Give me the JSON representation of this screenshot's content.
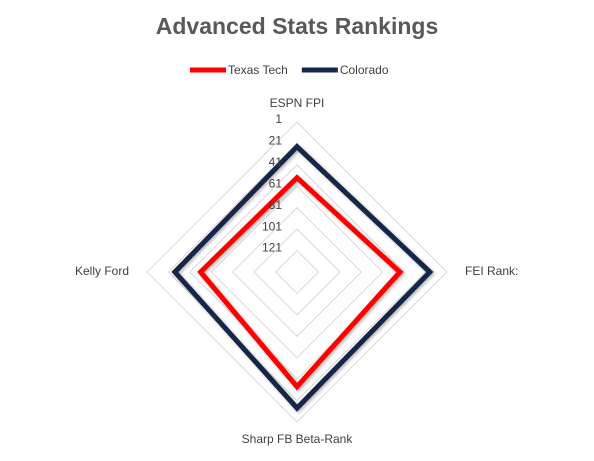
{
  "chart_data": {
    "type": "radar",
    "title": "Advanced Stats Rankings",
    "categories": [
      "ESPN FPI",
      "FEI Rank:",
      "Sharp FB Beta-Rank",
      "Kelly Ford"
    ],
    "series": [
      {
        "name": "Texas Tech",
        "color": "#ff0000",
        "values": [
          53,
          45,
          34,
          51
        ]
      },
      {
        "name": "Colorado",
        "color": "#14264a",
        "values": [
          24,
          17,
          14,
          27
        ]
      }
    ],
    "rlim": [
      141,
      1
    ],
    "rticks": [
      1,
      21,
      41,
      61,
      81,
      101,
      121
    ],
    "grid": true,
    "legend": "top"
  }
}
